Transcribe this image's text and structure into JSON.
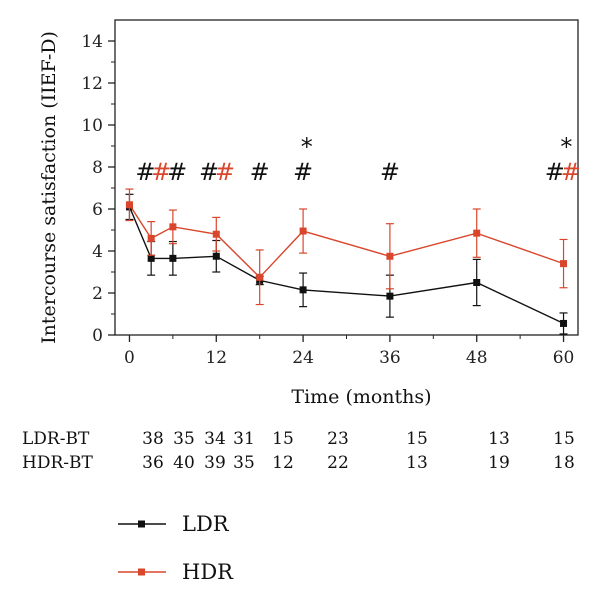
{
  "chart_data": {
    "type": "line",
    "title": "",
    "xlabel": "Time (months)",
    "ylabel": "Intercourse satisfaction (IIEF-D)",
    "xlim": [
      -2,
      62
    ],
    "ylim": [
      0,
      15
    ],
    "xticks": [
      0,
      12,
      24,
      36,
      48,
      60
    ],
    "yticks": [
      0,
      2,
      4,
      6,
      8,
      10,
      12,
      14
    ],
    "grid": false,
    "legend_position": "bottom-left",
    "series": [
      {
        "name": "LDR",
        "color": "#111111",
        "marker": "square",
        "x": [
          0,
          3,
          6,
          12,
          18,
          24,
          36,
          48,
          60
        ],
        "y": [
          6.1,
          3.65,
          3.65,
          3.75,
          2.6,
          2.15,
          1.85,
          2.5,
          0.55
        ],
        "err": [
          0.6,
          0.8,
          0.8,
          0.75,
          0.2,
          0.8,
          1.0,
          1.1,
          0.5
        ]
      },
      {
        "name": "HDR",
        "color": "#d9462c",
        "marker": "square",
        "x": [
          0,
          3,
          6,
          12,
          18,
          24,
          36,
          48,
          60
        ],
        "y": [
          6.2,
          4.6,
          5.15,
          4.8,
          2.75,
          4.95,
          3.75,
          4.85,
          3.4
        ],
        "err": [
          0.75,
          0.8,
          0.8,
          0.8,
          1.3,
          1.05,
          1.55,
          1.15,
          1.15
        ]
      }
    ],
    "annotations": [
      {
        "text": "#",
        "x": 2.2,
        "y": 7.8,
        "color": "#111111"
      },
      {
        "text": "#",
        "x": 4.4,
        "y": 7.8,
        "color": "#d9462c"
      },
      {
        "text": "#",
        "x": 6.6,
        "y": 7.8,
        "color": "#111111"
      },
      {
        "text": "#",
        "x": 11.0,
        "y": 7.8,
        "color": "#111111"
      },
      {
        "text": "#",
        "x": 13.2,
        "y": 7.8,
        "color": "#d9462c"
      },
      {
        "text": "#",
        "x": 18.0,
        "y": 7.8,
        "color": "#111111"
      },
      {
        "text": "#",
        "x": 24.0,
        "y": 7.8,
        "color": "#111111"
      },
      {
        "text": "*",
        "x": 24.5,
        "y": 9.0,
        "color": "#111111"
      },
      {
        "text": "#",
        "x": 36.0,
        "y": 7.8,
        "color": "#111111"
      },
      {
        "text": "#",
        "x": 58.8,
        "y": 7.8,
        "color": "#111111"
      },
      {
        "text": "#",
        "x": 61.0,
        "y": 7.8,
        "color": "#d9462c"
      },
      {
        "text": "*",
        "x": 60.4,
        "y": 9.0,
        "color": "#111111"
      }
    ],
    "n_at_risk": {
      "x": [
        0,
        3,
        6,
        9,
        12,
        24,
        36,
        48,
        60
      ],
      "rows": [
        {
          "label": "LDR-BT",
          "values": [
            "38",
            "35",
            "34",
            "31",
            "15",
            "23",
            "15",
            "13",
            "15"
          ]
        },
        {
          "label": "HDR-BT",
          "values": [
            "36",
            "40",
            "39",
            "35",
            "12",
            "22",
            "13",
            "19",
            "18"
          ]
        }
      ]
    }
  }
}
